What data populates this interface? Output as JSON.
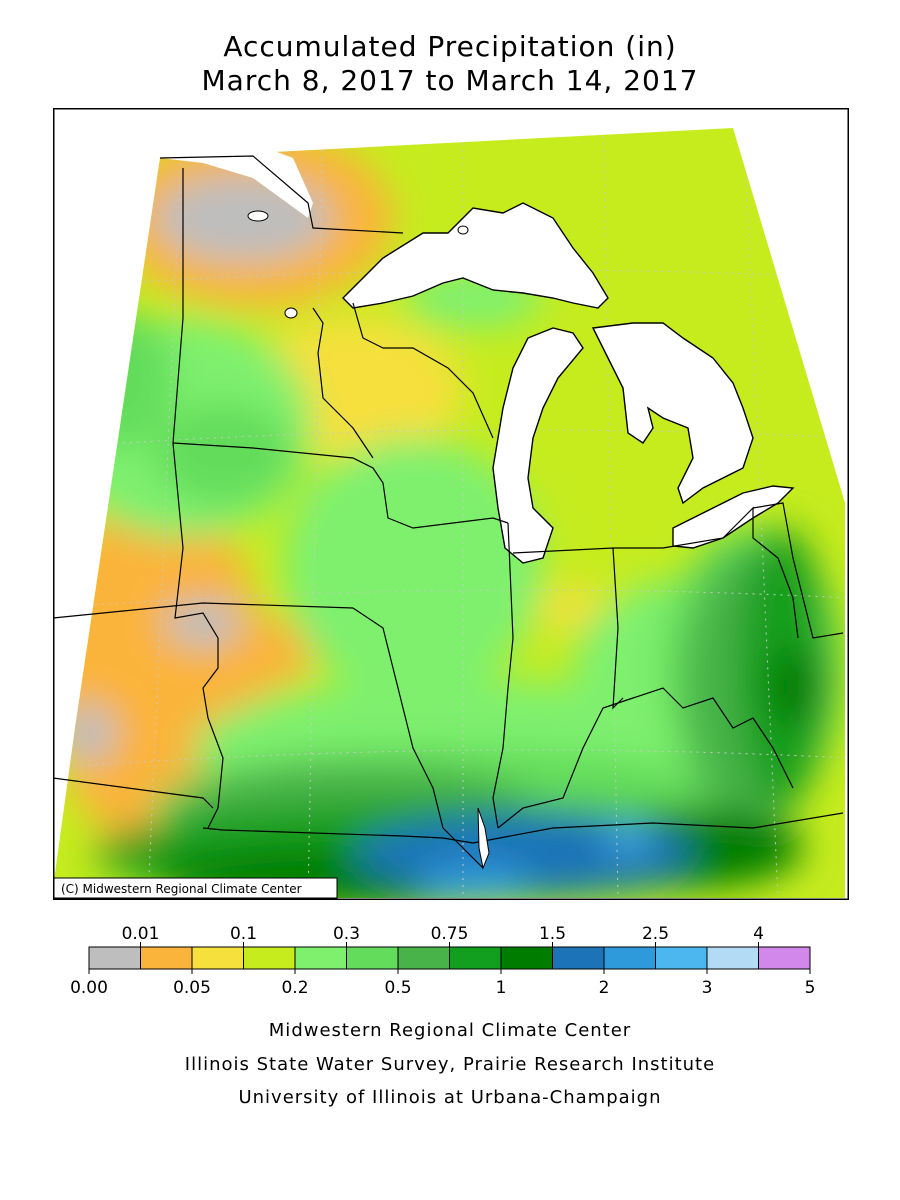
{
  "title": {
    "line1": "Accumulated Precipitation (in)",
    "line2": "March 8, 2017 to March 14, 2017"
  },
  "map": {
    "copyright": "(C) Midwestern Regional Climate Center",
    "regions": [
      "Minnesota",
      "Wisconsin",
      "Michigan",
      "Iowa",
      "Illinois",
      "Indiana",
      "Ohio",
      "Missouri",
      "Kentucky"
    ]
  },
  "legend": {
    "upper_labels": [
      "0.01",
      "0.1",
      "0.3",
      "0.75",
      "1.5",
      "2.5",
      "4"
    ],
    "lower_labels": [
      "0.00",
      "0.05",
      "0.2",
      "0.5",
      "1",
      "2",
      "3",
      "5"
    ],
    "colors": [
      "#bebebe",
      "#fbb43b",
      "#f6e03c",
      "#c6ec1e",
      "#7ef06e",
      "#63dc5c",
      "#47b348",
      "#129e1e",
      "#007d00",
      "#1d73b8",
      "#2e9adc",
      "#4cb6ef",
      "#b3dbf5",
      "#d288eb"
    ]
  },
  "footer": {
    "line1": "Midwestern Regional Climate Center",
    "line2": "Illinois State Water Survey, Prairie Research Institute",
    "line3": "University of Illinois at Urbana-Champaign"
  }
}
